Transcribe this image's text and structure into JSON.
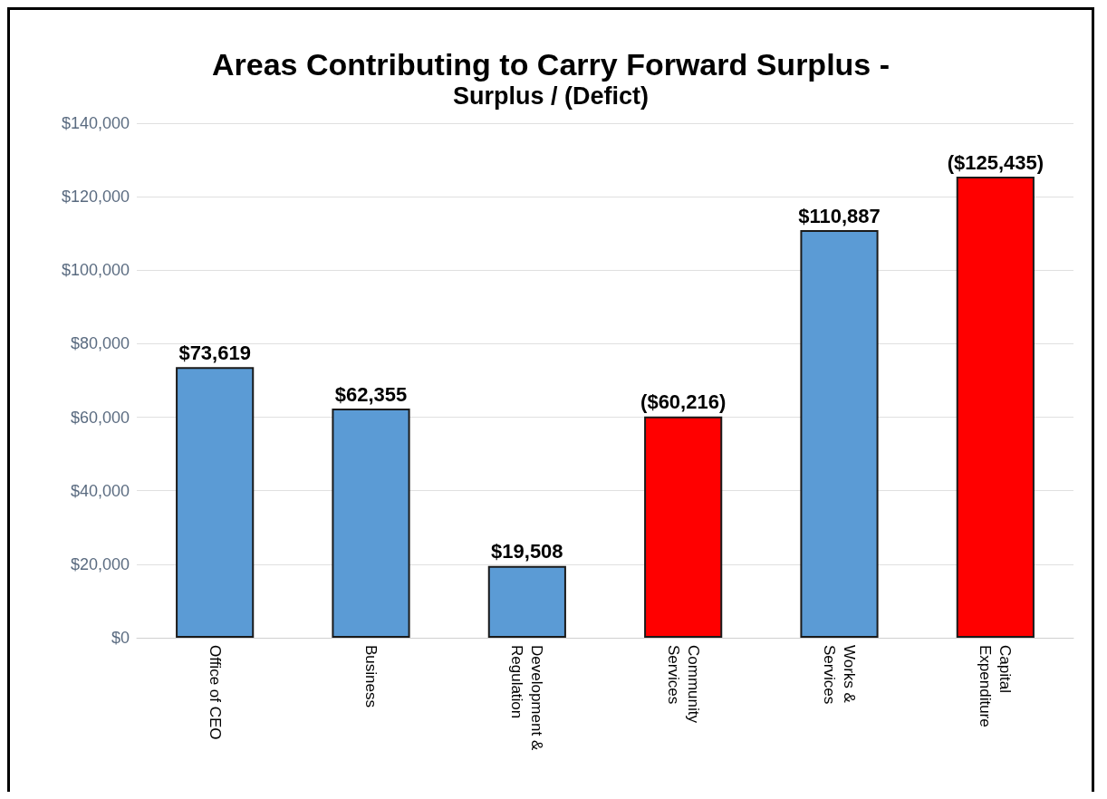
{
  "chart_data": {
    "type": "bar",
    "title": "Areas Contributing to Carry Forward Surplus -",
    "subtitle": "Surplus / (Defict)",
    "categories": [
      "Office of CEO",
      "Business",
      "Development & Regulation",
      "Community Services",
      "Works & Services",
      "Capital Expenditure"
    ],
    "values": [
      73619,
      62355,
      19508,
      60216,
      110887,
      125435
    ],
    "colors": [
      "#5b9bd5",
      "#5b9bd5",
      "#5b9bd5",
      "#ff0000",
      "#5b9bd5",
      "#ff0000"
    ],
    "value_labels": [
      "$73,619",
      "$62,355",
      "$19,508",
      "($60,216)",
      "$110,887",
      "($125,435)"
    ],
    "ylim": [
      0,
      140000
    ],
    "yticks": [
      {
        "value": 0,
        "label": "$0"
      },
      {
        "value": 20000,
        "label": "$20,000"
      },
      {
        "value": 40000,
        "label": "$40,000"
      },
      {
        "value": 60000,
        "label": "$60,000"
      },
      {
        "value": 80000,
        "label": "$80,000"
      },
      {
        "value": 100000,
        "label": "$100,000"
      },
      {
        "value": 120000,
        "label": "$120,000"
      },
      {
        "value": 140000,
        "label": "$140,000"
      }
    ],
    "grid": "y"
  }
}
